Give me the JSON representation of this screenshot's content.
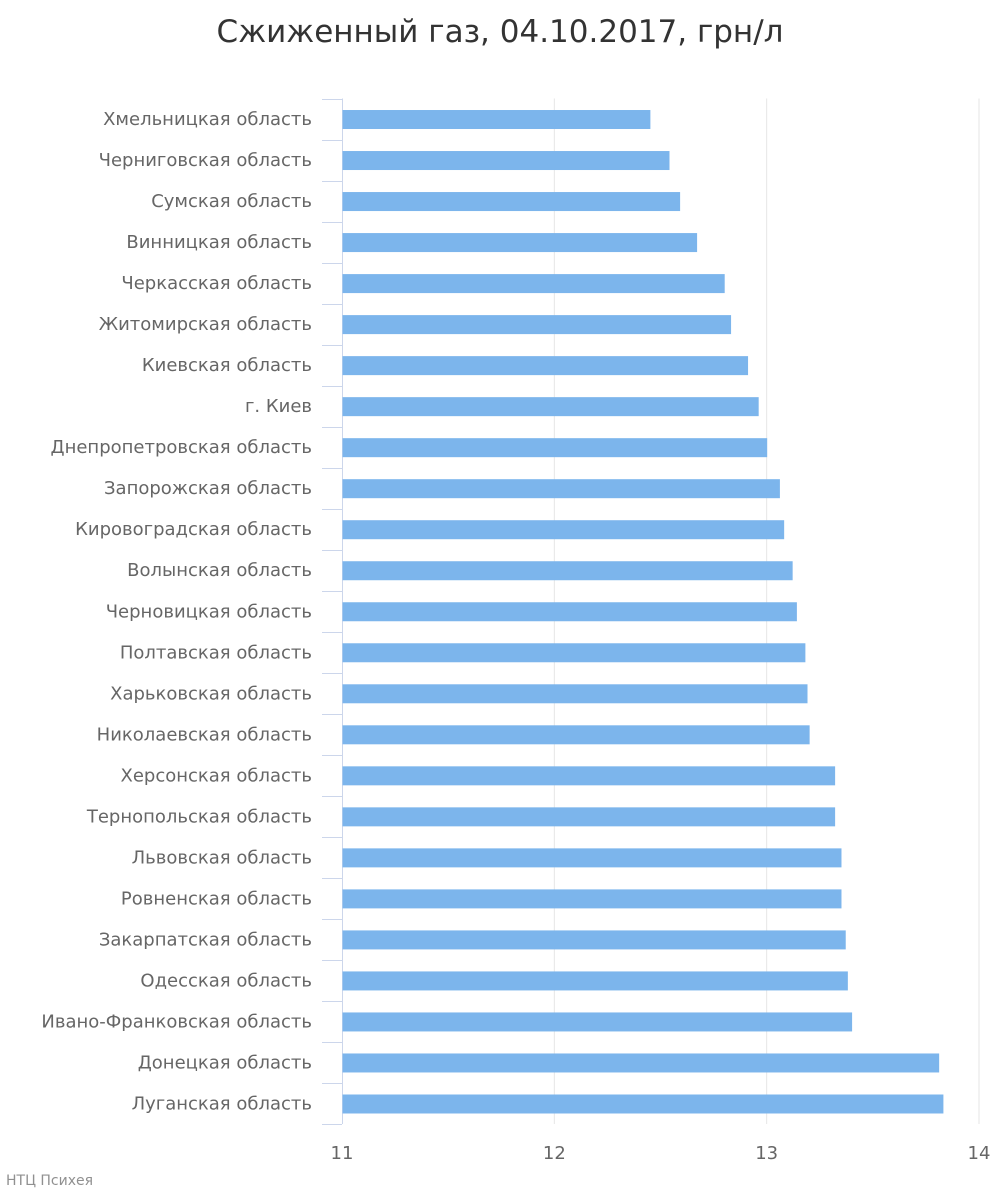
{
  "chart_data": {
    "type": "bar",
    "orientation": "horizontal",
    "title": "Сжиженный газ, 04.10.2017, грн/л",
    "xlabel": "",
    "ylabel": "",
    "xlim": [
      11,
      14
    ],
    "xticks": [
      11,
      12,
      13,
      14
    ],
    "grid": true,
    "bar_color": "#7cb5ec",
    "categories": [
      "Хмельницкая область",
      "Черниговская область",
      "Сумская область",
      "Винницкая область",
      "Черкасская область",
      "Житомирская область",
      "Киевская область",
      "г. Киев",
      "Днепропетровская область",
      "Запорожская область",
      "Кировоградская область",
      "Волынская область",
      "Черновицкая область",
      "Полтавская область",
      "Харьковская область",
      "Николаевская область",
      "Херсонская область",
      "Тернопольская область",
      "Львовская область",
      "Ровненская область",
      "Закарпатская область",
      "Одесская область",
      "Ивано-Франковская область",
      "Донецкая область",
      "Луганская область"
    ],
    "values": [
      12.45,
      12.54,
      12.59,
      12.67,
      12.8,
      12.83,
      12.91,
      12.96,
      13.0,
      13.06,
      13.08,
      13.12,
      13.14,
      13.18,
      13.19,
      13.2,
      13.32,
      13.32,
      13.35,
      13.35,
      13.37,
      13.38,
      13.4,
      13.81,
      13.83
    ]
  },
  "credit": "НТЦ Психея"
}
